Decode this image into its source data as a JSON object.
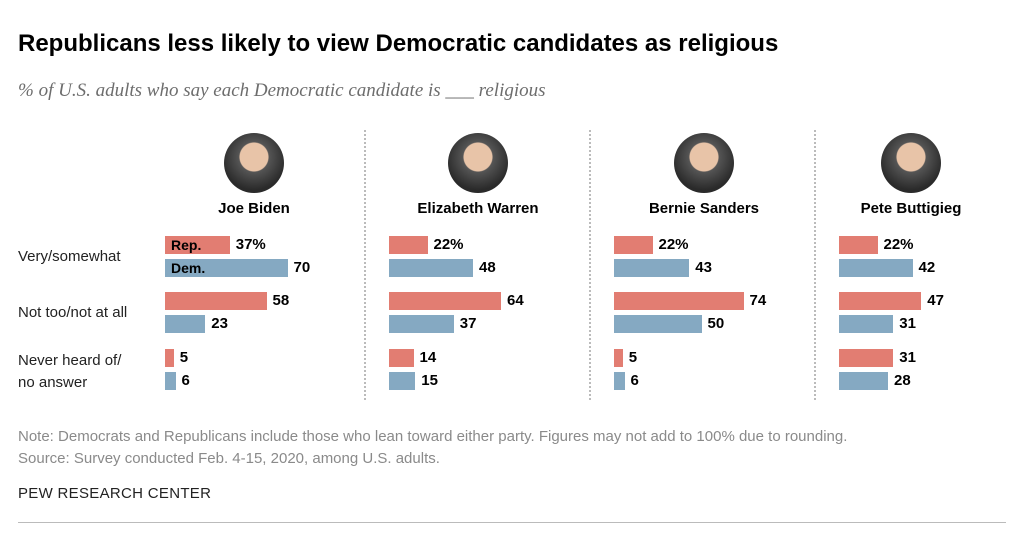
{
  "chart_data": {
    "type": "bar",
    "title": "Republicans less likely to view Democratic candidates as religious",
    "subtitle": "% of U.S. adults who say each Democratic candidate is ___ religious",
    "categories": [
      "Very/somewhat",
      "Not too/not at all",
      "Never heard of/ no answer"
    ],
    "category_lines": [
      [
        "Very/somewhat"
      ],
      [
        "Not too/not at all"
      ],
      [
        "Never heard of/",
        "no answer"
      ]
    ],
    "legend": {
      "rep": "Rep.",
      "dem": "Dem."
    },
    "colors": {
      "rep": "#e27d72",
      "dem": "#85a9c2"
    },
    "candidates": [
      {
        "name": "Joe Biden",
        "rep": [
          37,
          58,
          5
        ],
        "dem": [
          70,
          23,
          6
        ]
      },
      {
        "name": "Elizabeth Warren",
        "rep": [
          22,
          64,
          14
        ],
        "dem": [
          48,
          37,
          15
        ]
      },
      {
        "name": "Bernie Sanders",
        "rep": [
          22,
          74,
          5
        ],
        "dem": [
          43,
          50,
          6
        ]
      },
      {
        "name": "Pete Buttigieg",
        "rep": [
          22,
          47,
          31
        ],
        "dem": [
          42,
          31,
          28
        ]
      }
    ],
    "xlim": [
      0,
      100
    ]
  },
  "notes": {
    "note": "Note: Democrats and Republicans include those who lean toward either party. Figures may not add to 100% due to rounding.",
    "source": "Source: Survey conducted Feb. 4-15, 2020, among U.S. adults.",
    "brand": "PEW RESEARCH CENTER"
  }
}
